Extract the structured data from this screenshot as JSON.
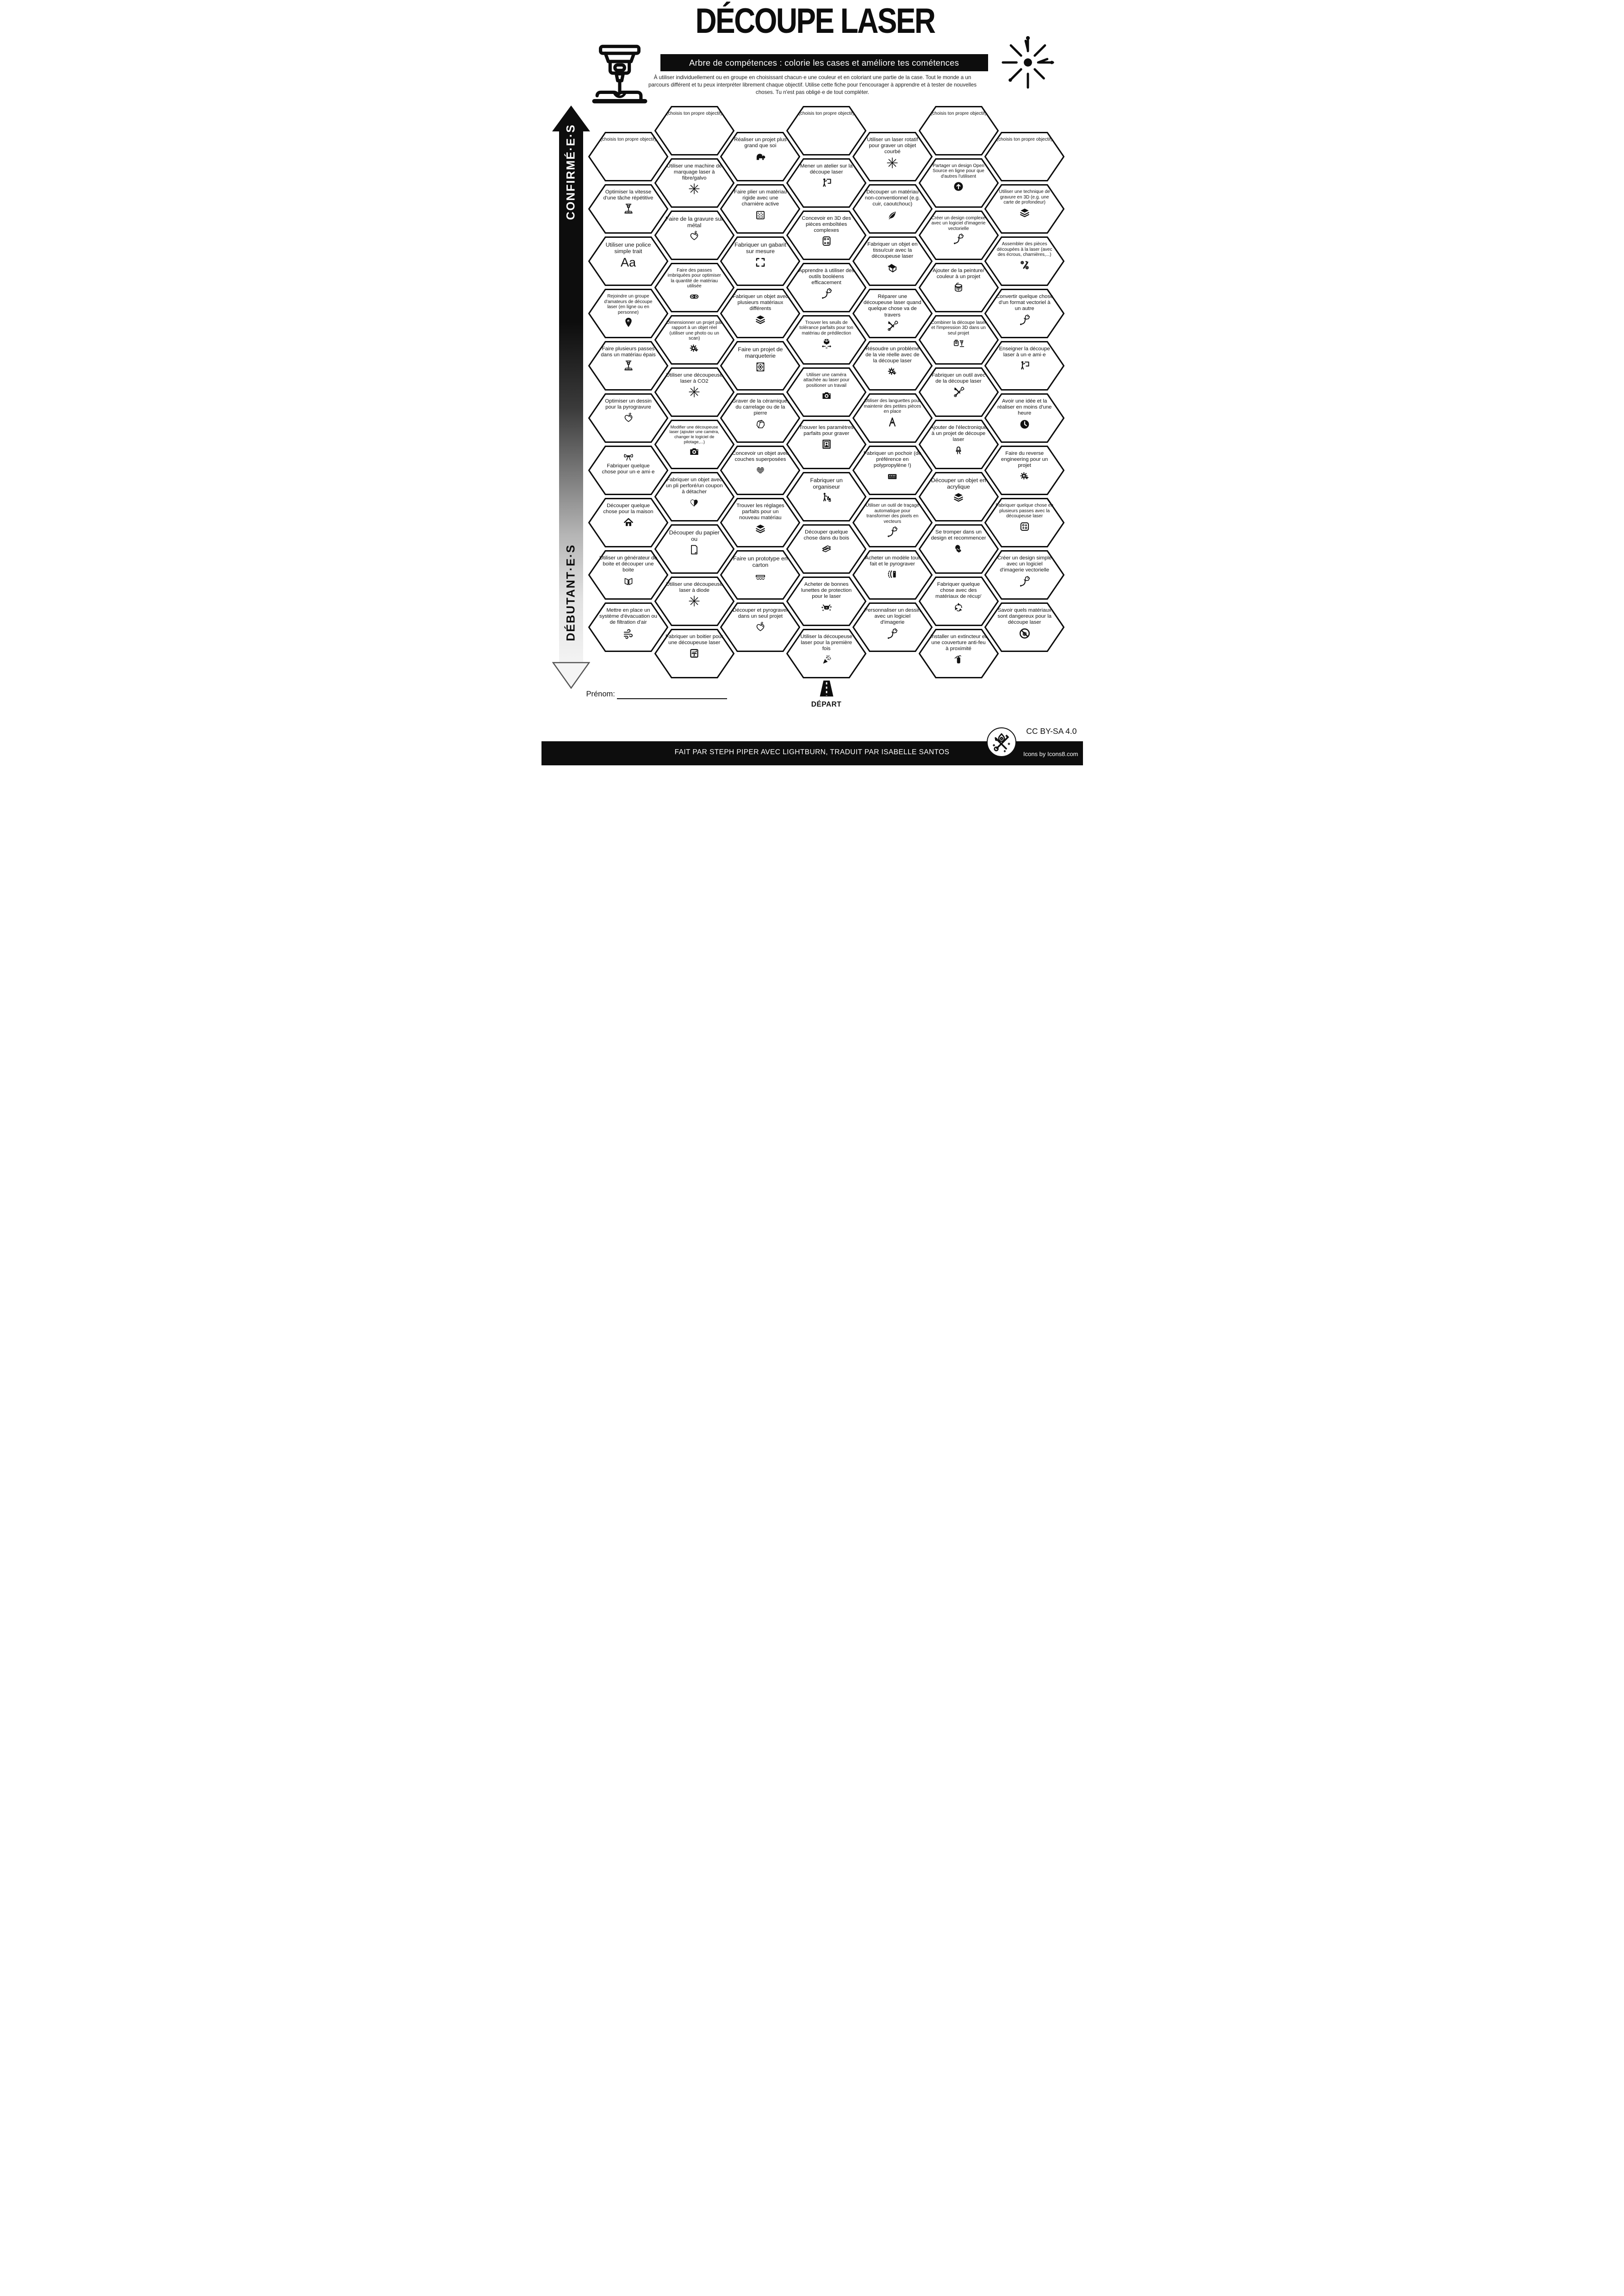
{
  "header": {
    "title": "DÉCOUPE LASER",
    "subtitle": "Arbre de compétences : colorie les cases et améliore tes cométences",
    "description": "À utiliser individuellement ou en groupe en choisissant chacun·e une couleur et en coloriant une partie de la case. Tout le monde a un parcours différent et tu peux interpréter librement chaque objectif. Utilise cette fiche pour t'encourager à apprendre et à tester de nouvelles choses. Tu n'est pas obligé·e de tout compléter.",
    "logo_icon": "laser-cutter-machine-icon",
    "burst_icon": "laser-beam-burst-icon"
  },
  "axis": {
    "top_label": "CONFIRMÉ·E·S",
    "bottom_label": "DÉBUTANT·E·S"
  },
  "colors": {
    "ink": "#0d0d0d",
    "paper": "#ffffff"
  },
  "start": {
    "label": "DÉPART",
    "icon": "road-start"
  },
  "footer": {
    "prenom_label": "Prénom:",
    "credit": "FAIT PAR STEPH PIPER AVEC LIGHTBURN, TRADUIT PAR ISABELLE SANTOS",
    "license": "CC BY-SA 4.0",
    "icons_credit": "Icons by Icons8.com",
    "badge_icon": "maker-tools-badge-icon"
  },
  "grid": {
    "columns": [
      {
        "row_offset": 0.5,
        "hexes": [
          {
            "label": "(choisis ton propre objectif)",
            "icon": null
          },
          {
            "label": "Optimiser la vitesse d'une tâche répétitive",
            "icon": "laser-head"
          },
          {
            "label": "Utiliser une police simple trait",
            "icon": "font-Aa"
          },
          {
            "label": "Rejoindre un groupe d'amateurs de découpe laser (en ligne ou en personne)",
            "icon": "map-pin"
          },
          {
            "label": "Faire plusieurs passes dans un matériau épais",
            "icon": "laser-head"
          },
          {
            "label": "Optimiser un dessin pour la pyrogravure",
            "icon": "heart-spark"
          },
          {
            "label": "Fabriquer quelque chose pour un·e ami·e",
            "icon": "gift-bow",
            "icon_pos": "top"
          },
          {
            "label": "Découper quelque chose pour la maison",
            "icon": "house"
          },
          {
            "label": "Utiliser un générateur de boite et découper une boite",
            "icon": "joint-box"
          },
          {
            "label": "Mettre en place un système d'évacuation ou de filtration d'air",
            "icon": "wind"
          }
        ]
      },
      {
        "row_offset": 0,
        "hexes": [
          {
            "label": "(choisis ton propre objectif)",
            "icon": null
          },
          {
            "label": "Utiliser une machine de marquage laser à fibre/galvo",
            "icon": "laser-burst"
          },
          {
            "label": "Faire de la gravure sur métal",
            "icon": "heart-spark"
          },
          {
            "label": "Faire des passes imbriquées pour optimiser la quantité de matériau utilisée",
            "icon": "nested-parts"
          },
          {
            "label": "Dimensionner un projet par rapport à un objet réel (utiliser une photo ou un scan)",
            "icon": "gear-hand"
          },
          {
            "label": "Utiliser une découpeuse laser à CO2",
            "icon": "laser-burst"
          },
          {
            "label": "Modifier une découpeuse laser (ajouter une caméra, changer le logiciel de pilotage,...)",
            "icon": "camera"
          },
          {
            "label": "Fabriquer un objet avec un pli perforé/un coupon à détacher",
            "icon": "half-heart"
          },
          {
            "label": "Découper du papier ou",
            "icon": "paper"
          },
          {
            "label": "Utiliser une découpeuse laser à diode",
            "icon": "laser-burst"
          },
          {
            "label": "Fabriquer un boitier pour une découpeuse laser",
            "icon": "enclosure"
          }
        ]
      },
      {
        "row_offset": 0.5,
        "hexes": [
          {
            "label": "Réaliser un projet plus grand que soi",
            "icon": "elephant"
          },
          {
            "label": "Faire plier un matériau rigide avec une charnière active",
            "icon": "living-hinge"
          },
          {
            "label": "Fabriquer un gabarit sur mesure",
            "icon": "frame-corners"
          },
          {
            "label": "Fabriquer un objet avec plusieurs matériaux différents",
            "icon": "layers"
          },
          {
            "label": "Faire un projet de marqueterie",
            "icon": "marquetry"
          },
          {
            "label": "Graver de la céramique, du carrelage ou de la pierre",
            "icon": "stone"
          },
          {
            "label": "Concevoir un objet avec couches superposées",
            "icon": "striped-heart"
          },
          {
            "label": "Trouver les réglages parfaits pour un nouveau matériau",
            "icon": "layers"
          },
          {
            "label": "Faire un prototype en carton",
            "icon": "corrugated"
          },
          {
            "label": "Découper et pyrograver dans un seul projet",
            "icon": "heart-spark"
          }
        ]
      },
      {
        "row_offset": 0,
        "hexes": [
          {
            "label": "(choisis ton propre objectif)",
            "icon": null
          },
          {
            "label": "Mener un atelier sur la découpe laser",
            "icon": "presenter"
          },
          {
            "label": "Concevoir en 3D des pièces emboîtées complexes",
            "icon": "puzzle-dice"
          },
          {
            "label": "Apprendre à utiliser des outils booléens efficacement",
            "icon": "pen-tool"
          },
          {
            "label": "Trouver les seuils de tolérance parfaits pour ton matériau de prédilection",
            "icon": "cube-arrows"
          },
          {
            "label": "Utiliser une caméra attachée au laser pour positioner un travail",
            "icon": "camera"
          },
          {
            "label": "Trouver les paramètres parfaits pour graver",
            "icon": "photo-frame"
          },
          {
            "label": "Fabriquer un organiseur",
            "icon": "person-organizer"
          },
          {
            "label": "Découper quelque chose dans du bois",
            "icon": "wood-planks"
          },
          {
            "label": "Acheter de bonnes lunettes de protection pour le laser",
            "icon": "safety-glasses"
          },
          {
            "label": "Utiliser la découpeuse laser pour la première fois",
            "icon": "party-popper"
          }
        ]
      },
      {
        "row_offset": 0.5,
        "hexes": [
          {
            "label": "Utiliser un laser rotatif pour graver un objet courbé",
            "icon": "laser-burst"
          },
          {
            "label": "Découper un matériau non-conventionnel (e.g. cuir, caoutchouc)",
            "icon": "leaf"
          },
          {
            "label": "Fabriquer un objet en tissu/cuir avec la découpeuse laser",
            "icon": "fabric"
          },
          {
            "label": "Réparer une découpeuse laser quand quelque chose va de travers",
            "icon": "tools"
          },
          {
            "label": "Résoudre un problème de la vie réelle avec de la découpe laser",
            "icon": "gear-hand"
          },
          {
            "label": "Utiliser des languettes pour maintenir des petites pièces en place",
            "icon": "tabs-A"
          },
          {
            "label": "Fabriquer un pochoir (de préférence en polypropylène !)",
            "icon": "stencil"
          },
          {
            "label": "Utiliser un outil de traçage automatique pour transformer des pixels en vecteurs",
            "icon": "pen-tool"
          },
          {
            "label": "Acheter un modèle tout fait et le pyrograver",
            "icon": "pyro-pen"
          },
          {
            "label": "Personnaliser un dessin avec un logiciel d'imagerie",
            "icon": "pen-tool"
          }
        ]
      },
      {
        "row_offset": 0,
        "hexes": [
          {
            "label": "(choisis ton propre objectif)",
            "icon": null
          },
          {
            "label": "Partager un design Open Source en ligne pour que d'autres l'utilisent",
            "icon": "upload-circle"
          },
          {
            "label": "Créer un design complexe avec un logiciel d'imagerie vectorielle",
            "icon": "pen-tool"
          },
          {
            "label": "Ajouter de la peinture/ couleur à un projet",
            "icon": "paint-bucket"
          },
          {
            "label": "Combiner la découpe laser et l'impression 3D dans un seul projet",
            "icon": "print-laser-combo"
          },
          {
            "label": "Fabriquer un outil avec de la découpe laser",
            "icon": "tools"
          },
          {
            "label": "Ajouter de l'électronique à un projet de découpe laser",
            "icon": "led"
          },
          {
            "label": "Découper un objet en acrylique",
            "icon": "layers"
          },
          {
            "label": "Se tromper dans un design et recommencer",
            "icon": "facepalm"
          },
          {
            "label": "Fabriquer quelque chose avec des matériaux de récup'",
            "icon": "recycle"
          },
          {
            "label": "Installer un extincteur et une couverture anti-feu à proximité",
            "icon": "fire-extinguisher"
          }
        ]
      },
      {
        "row_offset": 0.5,
        "hexes": [
          {
            "label": "(choisis ton propre objectif)",
            "icon": null
          },
          {
            "label": "Utiliser une technique de gravure en 3D (e.g. une carte de profondeur)",
            "icon": "layers"
          },
          {
            "label": "Assembler des pièces découpées à la laser (avec des écrous, charnières,...)",
            "icon": "hardware"
          },
          {
            "label": "Convertir quelque chose d'un format vectoriel à un autre",
            "icon": "pen-tool"
          },
          {
            "label": "Enseigner la découpe laser à un·e ami·e",
            "icon": "presenter"
          },
          {
            "label": "Avoir une idée et la réaliser en moins d'une heure",
            "icon": "clock"
          },
          {
            "label": "Faire du reverse engineering pour un projet",
            "icon": "gear-hand"
          },
          {
            "label": "Fabriquer quelque chose en plusieurs passes avec la découpeuse laser",
            "icon": "dice"
          },
          {
            "label": "Créer un design simple avec un logiciel d'imagerie vectorielle",
            "icon": "pen-tool"
          },
          {
            "label": "Savoir quels matériaux sont dangereux pour la découpe laser",
            "icon": "no-materials"
          }
        ]
      }
    ]
  }
}
